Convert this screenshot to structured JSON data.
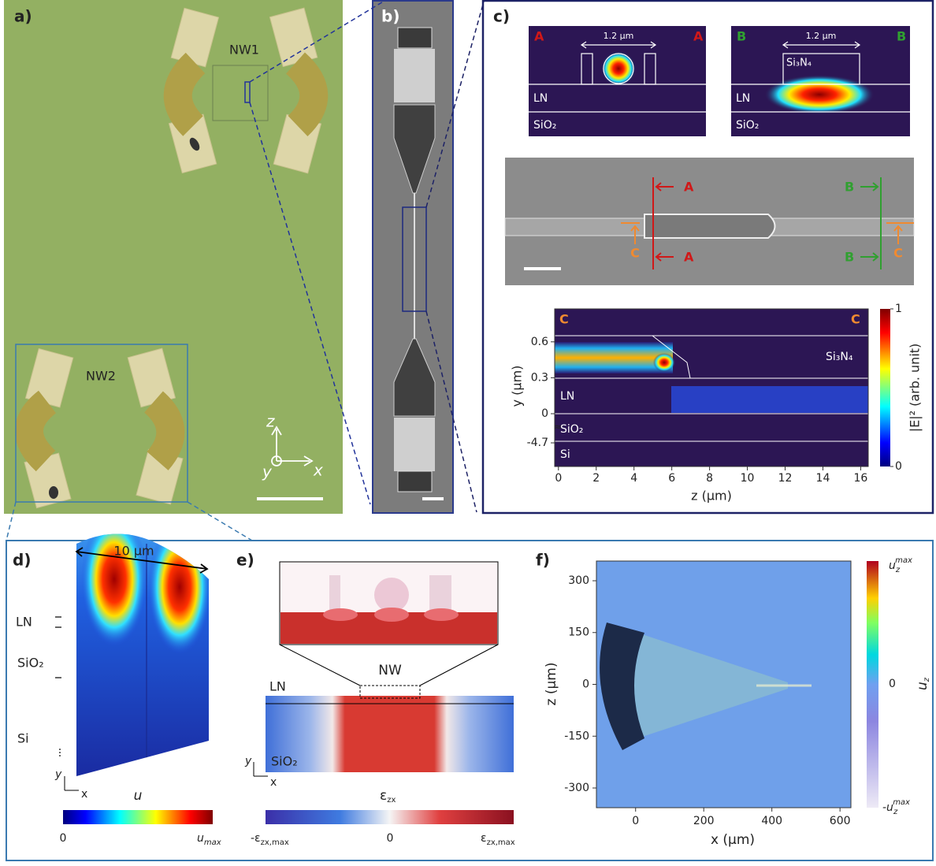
{
  "panels": {
    "a": {
      "label": "a)",
      "nw1": "NW1",
      "nw2": "NW2",
      "axes": {
        "z": "z",
        "y": "y",
        "x": "x"
      }
    },
    "b": {
      "label": "b)"
    },
    "c": {
      "label": "c)",
      "mode_a": {
        "left": "A",
        "right": "A",
        "width": "1.2 µm",
        "ln": "LN",
        "sio2": "SiO₂"
      },
      "mode_b": {
        "left": "B",
        "right": "B",
        "width": "1.2 µm",
        "core": "Si₃N₄",
        "ln": "LN",
        "sio2": "SiO₂"
      },
      "sem": {
        "a_top": "A",
        "a_bottom": "A",
        "b_top": "B",
        "b_bottom": "B",
        "c_left": "C",
        "c_right": "C"
      },
      "field": {
        "left": "C",
        "right": "C",
        "xlabel": "z (µm)",
        "ylabel": "y (µm)",
        "xlim": [
          -0.2,
          16.4
        ],
        "xticks": [
          0,
          2,
          4,
          6,
          8,
          10,
          12,
          14,
          16
        ],
        "yticks": [
          0.6,
          0.3,
          0,
          -4.7
        ],
        "layers": [
          "Si₃N₄",
          "LN",
          "SiO₂",
          "Si"
        ],
        "colorbar_label": "|E|² (arb. unit)",
        "colorbar_ticks": [
          1,
          0
        ]
      }
    },
    "d": {
      "label": "d)",
      "length": "10 µm",
      "layers": [
        "LN",
        "SiO₂",
        "Si"
      ],
      "axes": {
        "y": "y",
        "x": "x"
      },
      "field": "u",
      "colorbar": {
        "min": 0,
        "max": {
          "base": "u",
          "sub": "max"
        }
      }
    },
    "e": {
      "label": "e)",
      "nw": "NW",
      "layers": [
        "LN",
        "SiO₂"
      ],
      "axes": {
        "y": "y",
        "x": "x"
      },
      "field": {
        "base": "ε",
        "sub": "zx"
      },
      "colorbar": {
        "min": {
          "base": "-ε",
          "sub": "zx,max"
        },
        "mid": 0,
        "max": {
          "base": "ε",
          "sub": "zx,max"
        }
      }
    },
    "f": {
      "label": "f)",
      "xlabel": "x (µm)",
      "ylabel": "z (µm)",
      "xlim": [
        -115,
        632
      ],
      "ylim": [
        -357,
        357
      ],
      "xticks": [
        0,
        200,
        400,
        600
      ],
      "yticks": [
        300,
        150,
        0,
        -150,
        -300
      ],
      "colorbar": {
        "max": {
          "base": "u",
          "sub": "z",
          "sup": "max"
        },
        "mid": 0,
        "min": {
          "base": "-u",
          "sub": "z",
          "sup": "max"
        }
      },
      "colorbar_label": {
        "base": "u",
        "sub": "z"
      }
    }
  }
}
